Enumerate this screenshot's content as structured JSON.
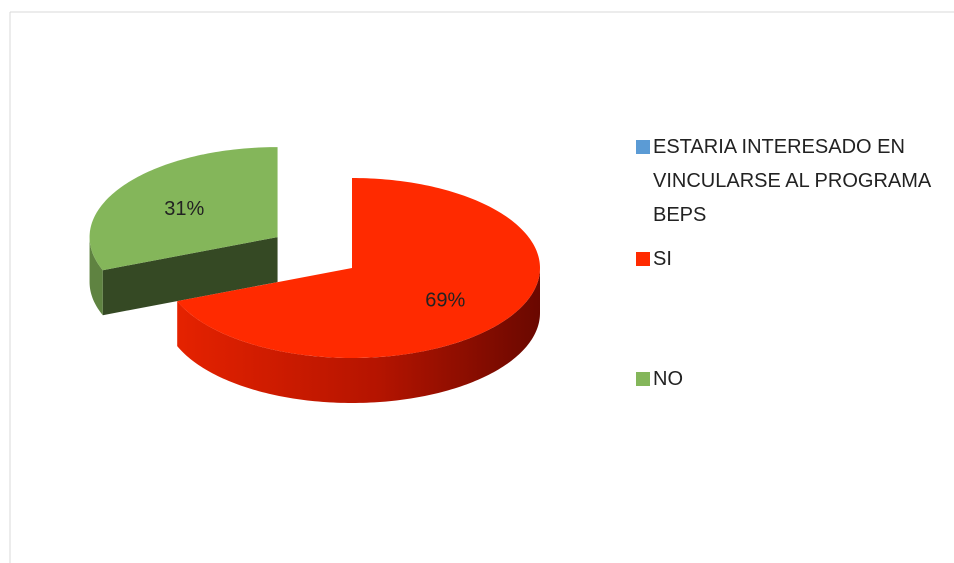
{
  "chart_data": {
    "type": "pie3d",
    "categories": [
      "ESTARIA INTERESADO EN VINCULARSE AL PROGRAMA BEPS",
      "SI",
      "NO"
    ],
    "values": [
      0,
      69,
      31
    ],
    "value_labels": [
      null,
      "69%",
      "31%"
    ],
    "colors": [
      "#5b9bd5",
      "#ff2a00",
      "#84b65a"
    ],
    "legend": "right"
  }
}
